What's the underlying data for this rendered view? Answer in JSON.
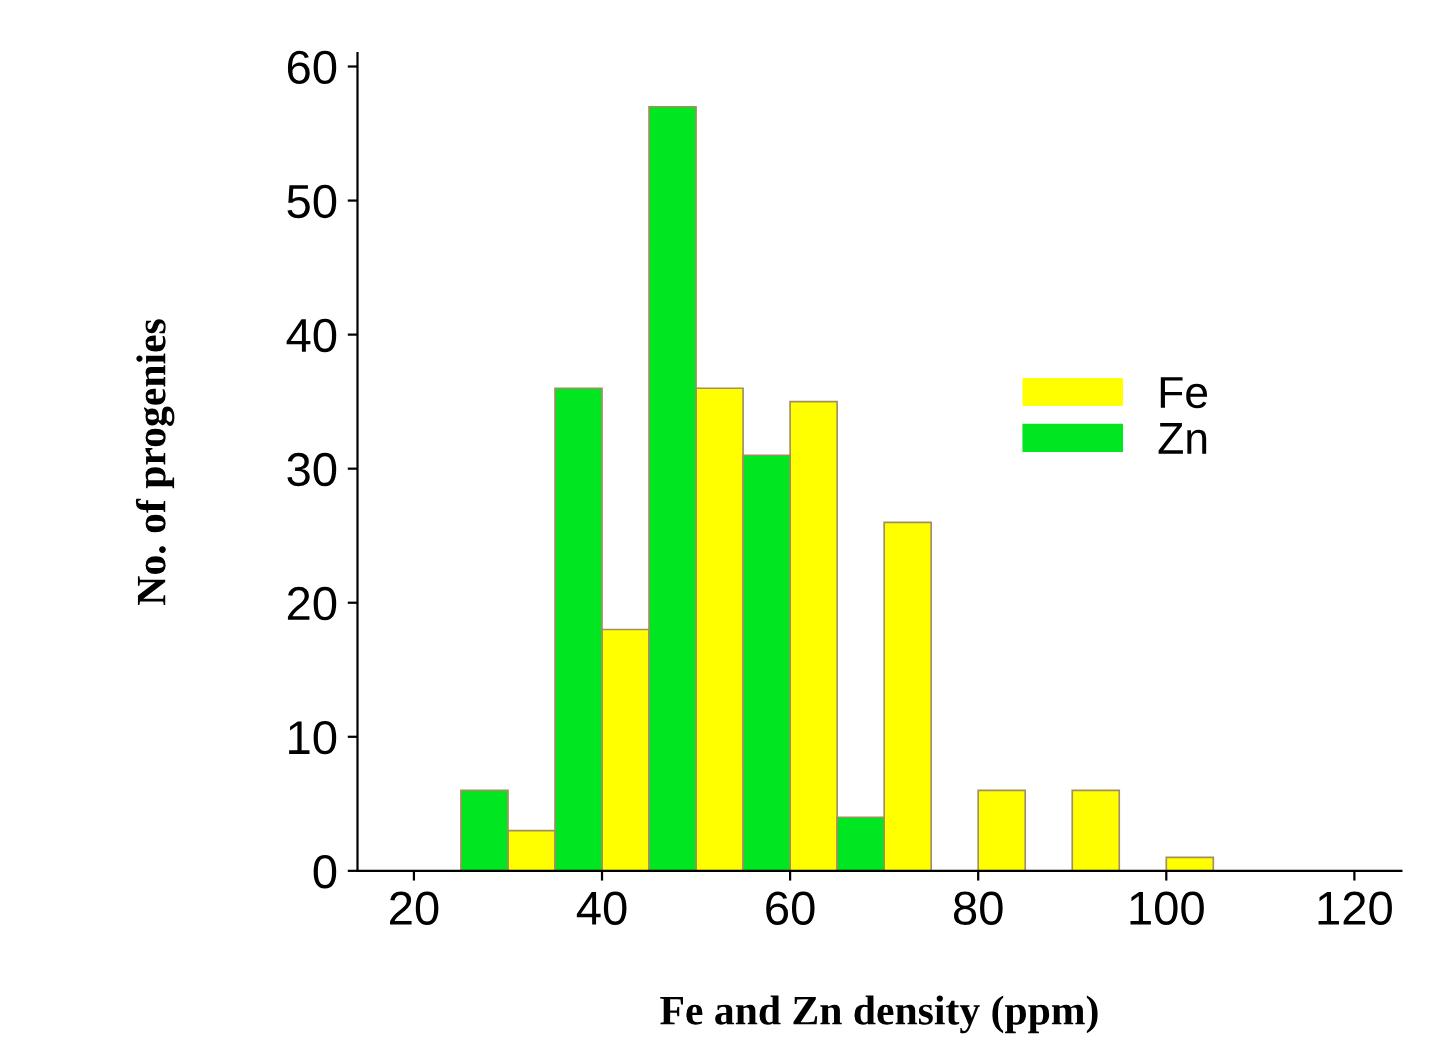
{
  "chart_data": {
    "type": "bar",
    "xlabel": "Fe and Zn density (ppm)",
    "ylabel": "No. of progenies",
    "xlim": [
      14,
      125
    ],
    "xticks": [
      20,
      40,
      60,
      80,
      100,
      120
    ],
    "ylim": [
      0,
      61
    ],
    "yticks": [
      0,
      10,
      20,
      30,
      40,
      50,
      60
    ],
    "grid": false,
    "legend": "right",
    "series": [
      {
        "name": "Fe",
        "color": "#ffff00",
        "x": [
          32.5,
          42.5,
          52.5,
          62.5,
          72.5,
          82.5,
          92.5,
          102.5
        ],
        "values": [
          3,
          18,
          36,
          35,
          26,
          6,
          6,
          1
        ]
      },
      {
        "name": "Zn",
        "color": "#00e620",
        "x": [
          27.5,
          37.5,
          47.5,
          57.5,
          67.5
        ],
        "values": [
          6,
          36,
          57,
          31,
          4
        ]
      }
    ]
  }
}
